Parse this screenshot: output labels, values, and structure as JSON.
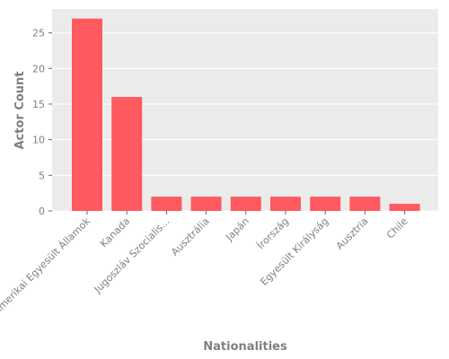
{
  "chart_data": {
    "type": "bar",
    "categories": [
      "Amerikai Egyesült Államok",
      "Kanada",
      "Jugoszláv Szocialis...",
      "Ausztrália",
      "Japán",
      "Írország",
      "Egyesült Királyság",
      "Ausztria",
      "Chile"
    ],
    "values": [
      27,
      16,
      2,
      2,
      2,
      2,
      2,
      2,
      1
    ],
    "xlabel": "Nationalities",
    "ylabel": "Actor Count",
    "ylim": [
      0,
      28.35
    ],
    "yticks": [
      0,
      5,
      10,
      15,
      20,
      25
    ],
    "grid": true,
    "legend": "none",
    "colors": {
      "bar": "#ff5a5f",
      "plot_background": "#ebebeb",
      "grid": "#ffffff",
      "text": "#808080"
    }
  }
}
